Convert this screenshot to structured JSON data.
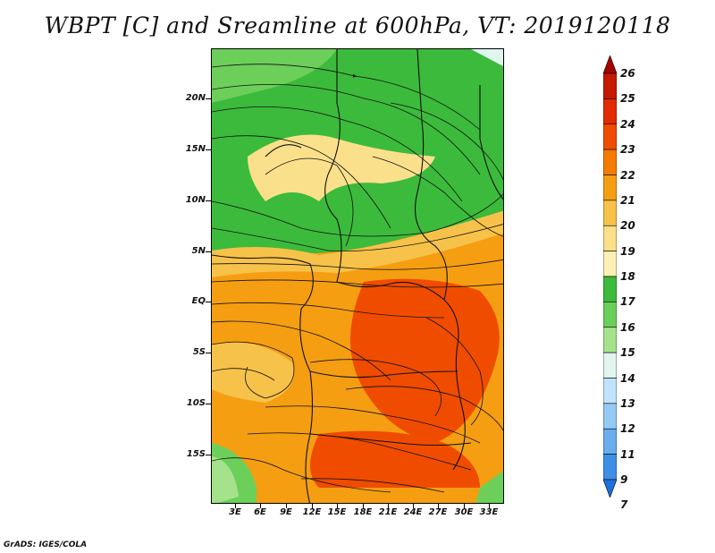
{
  "title": "WBPT [C] and Sreamline at 600hPa, VT: 2019120118",
  "footer": "GrADS: IGES/COLA",
  "map": {
    "lat_labels": [
      "20N",
      "15N",
      "10N",
      "5N",
      "EQ",
      "5S",
      "10S",
      "15S"
    ],
    "lon_labels": [
      "3E",
      "6E",
      "9E",
      "12E",
      "15E",
      "18E",
      "21E",
      "24E",
      "27E",
      "30E",
      "33E"
    ]
  },
  "colorbar": {
    "labels": [
      "26",
      "25",
      "24",
      "23",
      "22",
      "21",
      "20",
      "19",
      "18",
      "17",
      "16",
      "15",
      "14",
      "13",
      "12",
      "11",
      "9",
      "7"
    ],
    "colors": [
      "#a50000",
      "#c41800",
      "#e02c00",
      "#f04c00",
      "#f47a00",
      "#f59e12",
      "#f7c24a",
      "#fbe08c",
      "#fdf0b4",
      "#3cba3c",
      "#6ccf5a",
      "#a6e28c",
      "#dff5ee",
      "#bfe4fa",
      "#94c9f4",
      "#6aadee",
      "#3f8fe6",
      "#1f6fdc"
    ]
  }
}
